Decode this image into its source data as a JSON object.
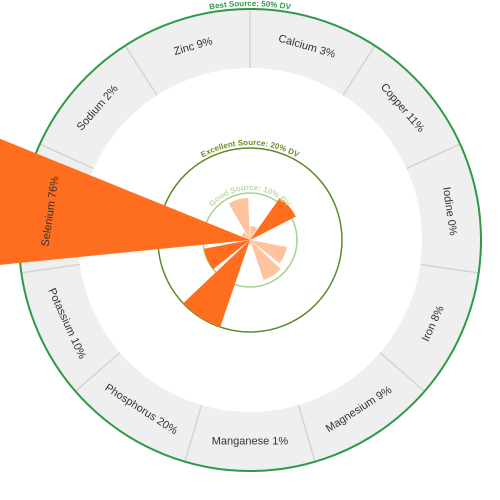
{
  "chart_data": {
    "type": "polar-bar",
    "unit": "% DV",
    "categories": [
      "Calcium",
      "Copper",
      "Iodine",
      "Iron",
      "Magnesium",
      "Manganese",
      "Phosphorus",
      "Potassium",
      "Selenium",
      "Sodium",
      "Zinc"
    ],
    "values": [
      3,
      11,
      0,
      8,
      9,
      1,
      20,
      10,
      76,
      2,
      9
    ],
    "labels": [
      "Calcium 3%",
      "Copper 11%",
      "Iodine 0%",
      "Iron 8%",
      "Magnesium 9%",
      "Manganese 1%",
      "Phosphorus 20%",
      "Potassium 10%",
      "Selenium 76%",
      "Sodium 2%",
      "Zinc 9%"
    ],
    "thresholds": [
      {
        "value": 10,
        "label": "Good Source: 10% DV",
        "color": "#a8d08d"
      },
      {
        "value": 20,
        "label": "Excellent Source: 20% DV",
        "color": "#5a8a2a"
      },
      {
        "value": 50,
        "label": "Best Source: 50% DV",
        "color": "#2e9a48"
      }
    ],
    "colors": {
      "bar_light": "#ffc3a0",
      "bar_dark": "#ff6e1e",
      "label_band": "#efefef",
      "band_divider": "#d4d4d4"
    }
  }
}
